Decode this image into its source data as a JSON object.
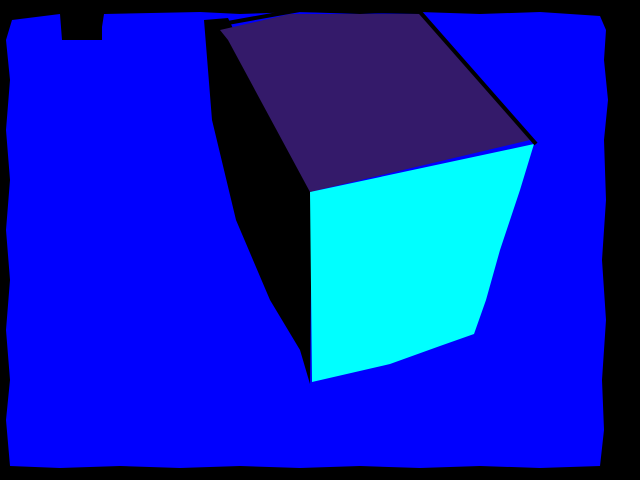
{
  "scene": {
    "description_colors": {
      "background_void": "#000000",
      "ground_plane": "#0000FF",
      "cube_top_face": "#341A6A",
      "cube_front_face": "#00FFFF",
      "cube_left_face": "#000000"
    }
  }
}
